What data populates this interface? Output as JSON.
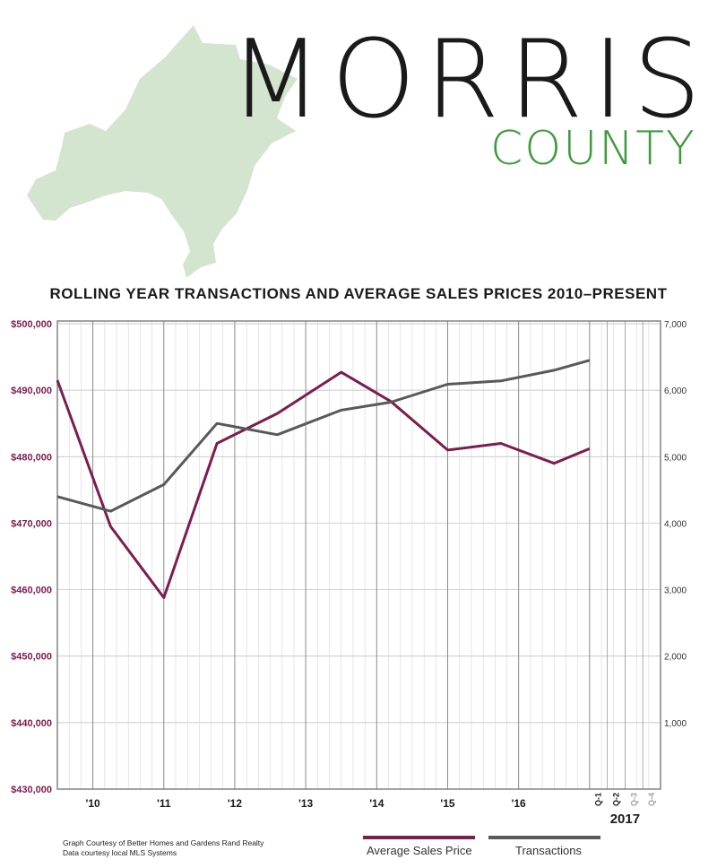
{
  "header": {
    "title_line1": "MORRIS",
    "title_line2": "COUNTY",
    "map_color": "#d4e5cf",
    "county_color": "#3f9a3c"
  },
  "chart_data": {
    "type": "line",
    "title": "ROLLING YEAR TRANSACTIONS AND AVERAGE SALES PRICES 2010–PRESENT",
    "x_ticks": [
      "'10",
      "'11",
      "'12",
      "'13",
      "'14",
      "'15",
      "'16"
    ],
    "x_quarter_ticks": [
      "Q-1",
      "Q-2",
      "Q-3",
      "Q-4"
    ],
    "x_year_label": "2017",
    "y_left": {
      "ticks": [
        "$500,000",
        "$490,000",
        "$480,000",
        "$470,000",
        "$460,000",
        "$450,000",
        "$440,000",
        "$430,000"
      ],
      "range": [
        430000,
        500000
      ],
      "color": "#7b1d4f"
    },
    "y_right": {
      "ticks": [
        "7,000",
        "6,000",
        "5,000",
        "4,000",
        "3,000",
        "2,000",
        "1,000"
      ],
      "range": [
        0,
        7000
      ]
    },
    "x_range": [
      2009.5,
      2018.0
    ],
    "grid": true,
    "series": [
      {
        "name": "Average Sales Price",
        "axis": "left",
        "color": "#7b1d4f",
        "x": [
          2009.5,
          2010.25,
          2011.0,
          2011.75,
          2012.6,
          2013.5,
          2014.2,
          2015.0,
          2015.75,
          2016.5,
          2017.0
        ],
        "y": [
          491500,
          469500,
          458800,
          482000,
          486500,
          492700,
          488300,
          481000,
          482000,
          479000,
          481200
        ]
      },
      {
        "name": "Transactions",
        "axis": "right",
        "color": "#595959",
        "x": [
          2009.5,
          2010.25,
          2011.0,
          2011.75,
          2012.6,
          2013.5,
          2014.2,
          2015.0,
          2015.75,
          2016.5,
          2017.0
        ],
        "y": [
          4400,
          4180,
          4580,
          5500,
          5330,
          5700,
          5820,
          6090,
          6140,
          6300,
          6450
        ]
      }
    ]
  },
  "footer": {
    "credit_line1": "Graph Courtesy of Better Homes and Gardens Rand Realty",
    "credit_line2": "Data courtesy local MLS Systems"
  }
}
